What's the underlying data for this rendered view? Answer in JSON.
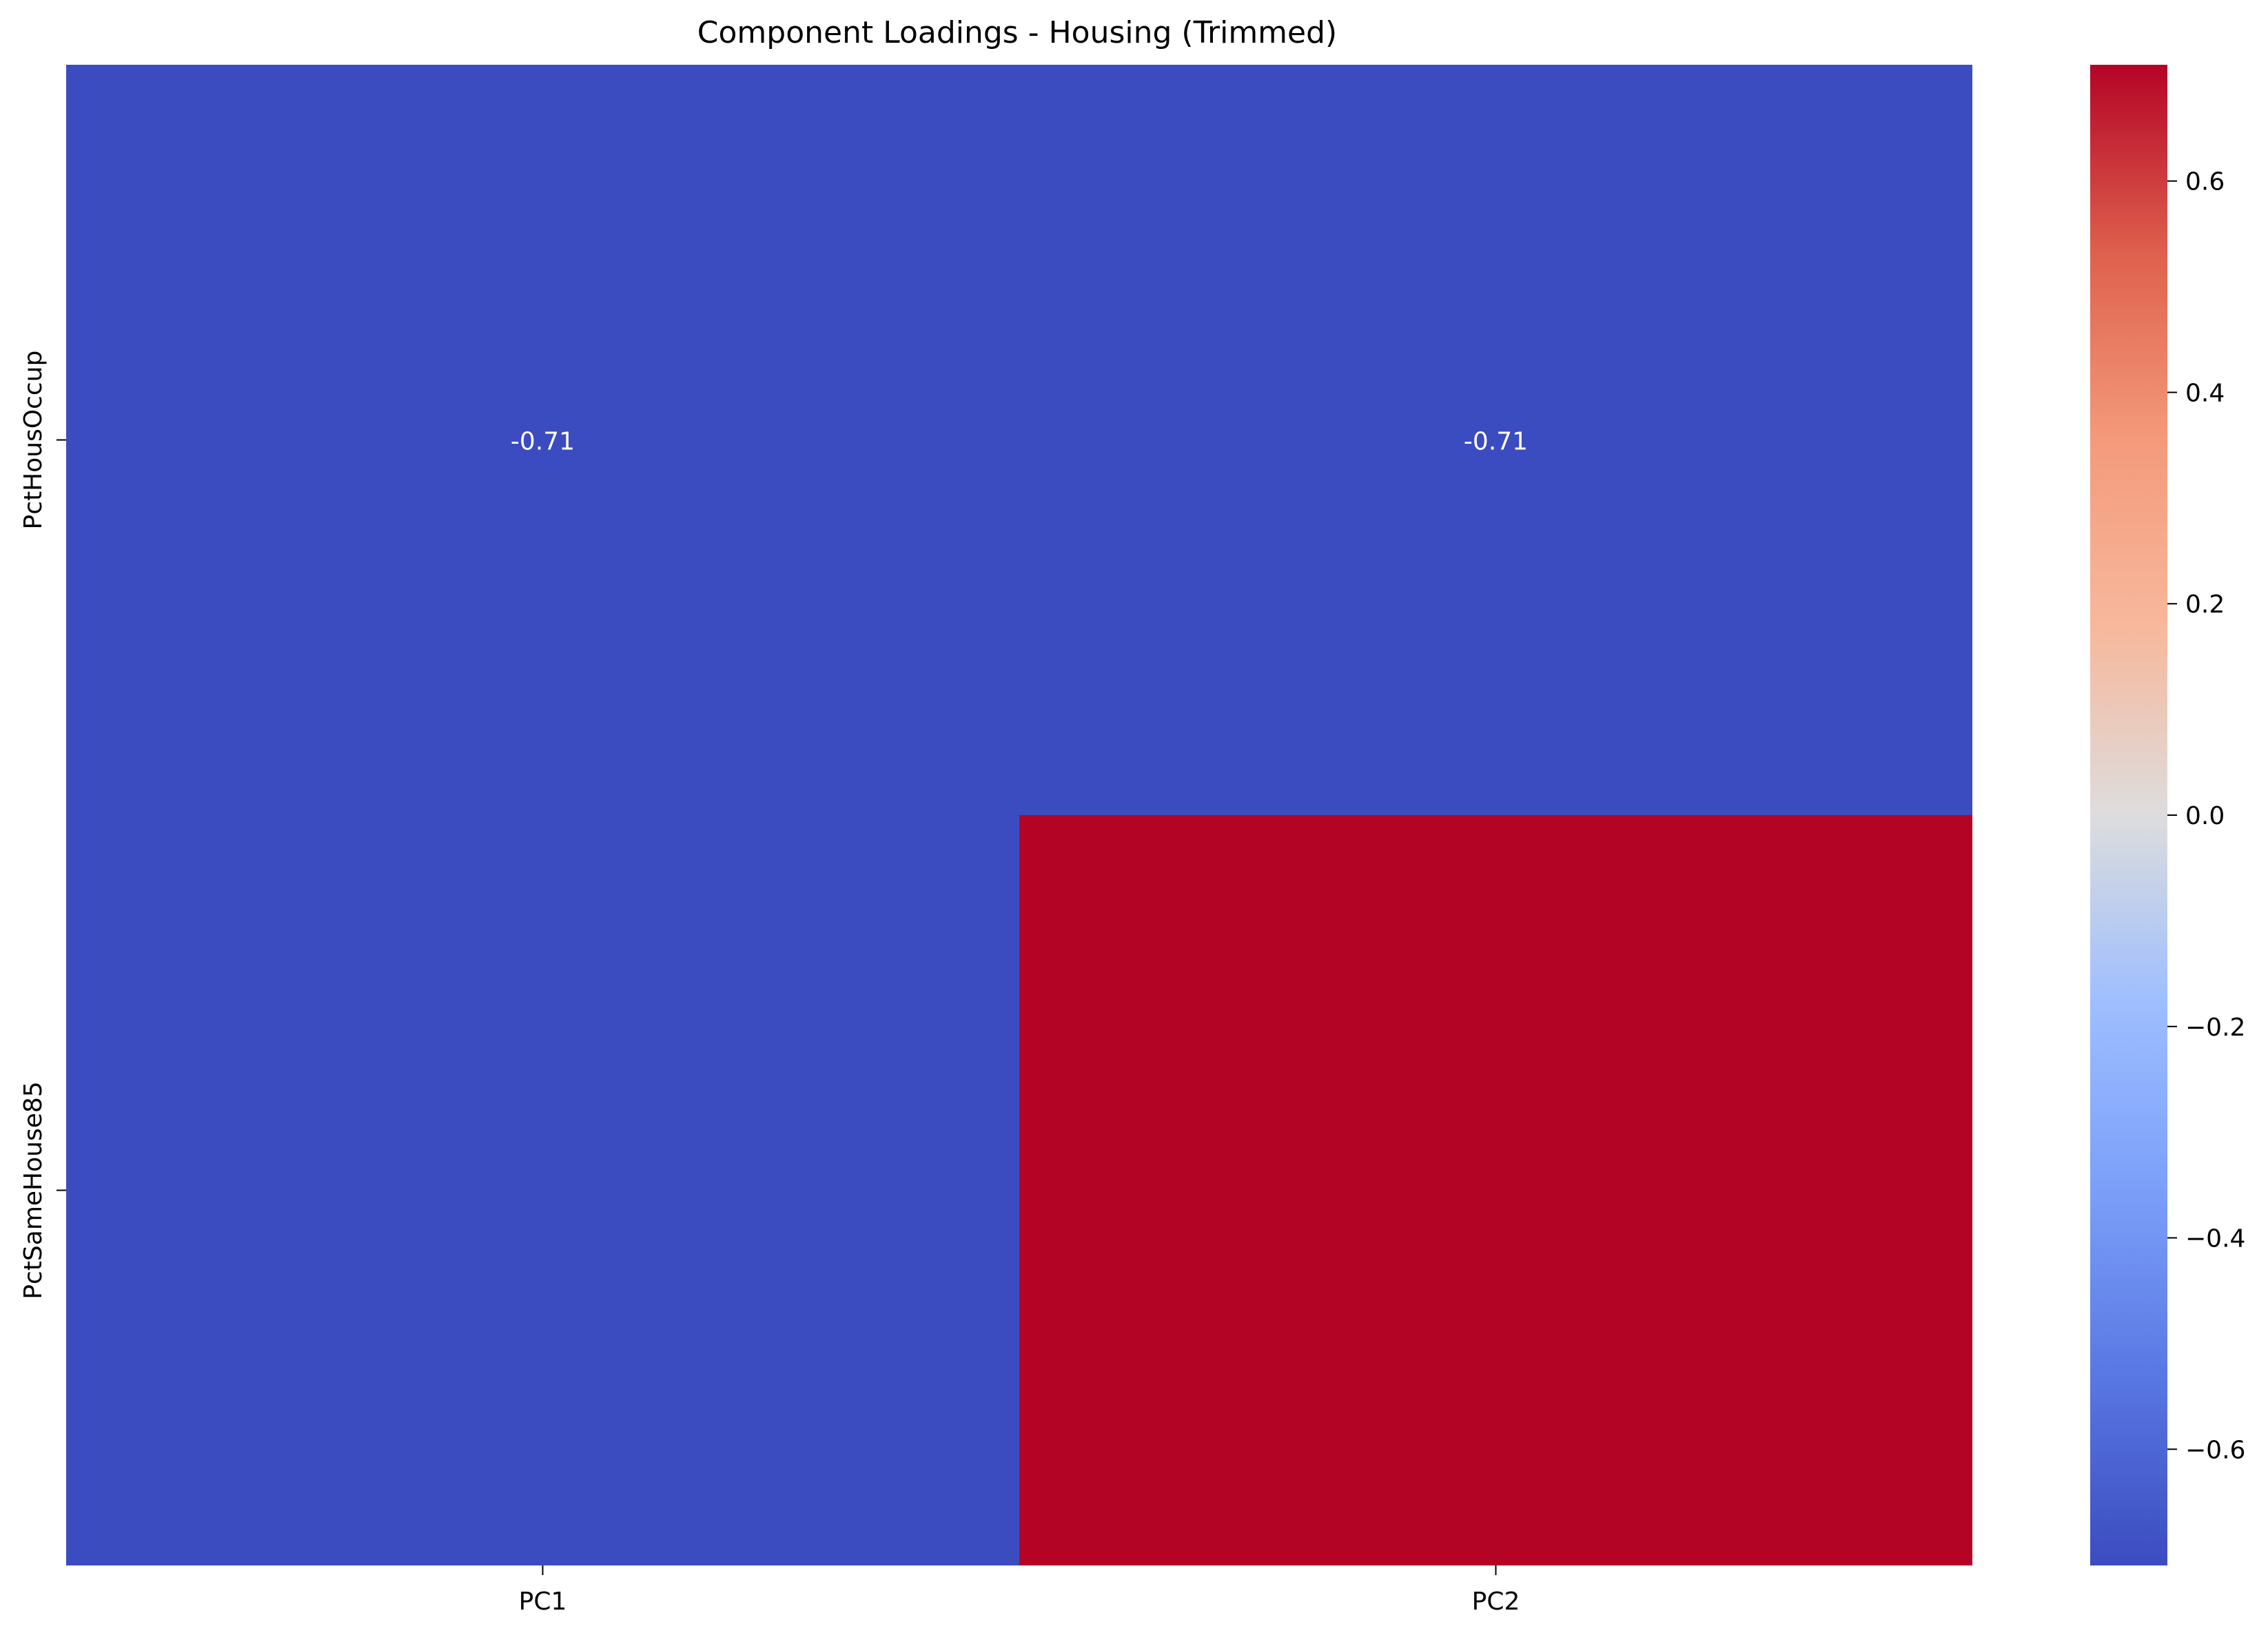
{
  "chart_data": {
    "type": "heatmap",
    "title": "Component Loadings - Housing (Trimmed)",
    "xlabel": "",
    "ylabel": "",
    "columns": [
      "PC1",
      "PC2"
    ],
    "rows": [
      "PctHousOccup",
      "PctSameHouse85"
    ],
    "values": [
      [
        -0.71,
        -0.71
      ],
      [
        -0.71,
        0.71
      ]
    ],
    "cell_labels": [
      [
        "-0.71",
        "-0.71"
      ],
      [
        "",
        ""
      ]
    ],
    "colormap": "coolwarm",
    "vmin": -0.71,
    "vmax": 0.71,
    "colorbar_ticks": [
      0.6,
      0.4,
      0.2,
      0.0,
      -0.2,
      -0.4,
      -0.6
    ],
    "colorbar_tick_labels": [
      "0.6",
      "0.4",
      "0.2",
      "0.0",
      "−0.2",
      "−0.4",
      "−0.6"
    ],
    "grid": false,
    "legend": "colorbar-right",
    "colors": {
      "low": "#3b4cc0",
      "mid": "#dddddd",
      "high": "#b40426",
      "annotation_text": "#ffffff",
      "axis_text": "#000000"
    }
  }
}
